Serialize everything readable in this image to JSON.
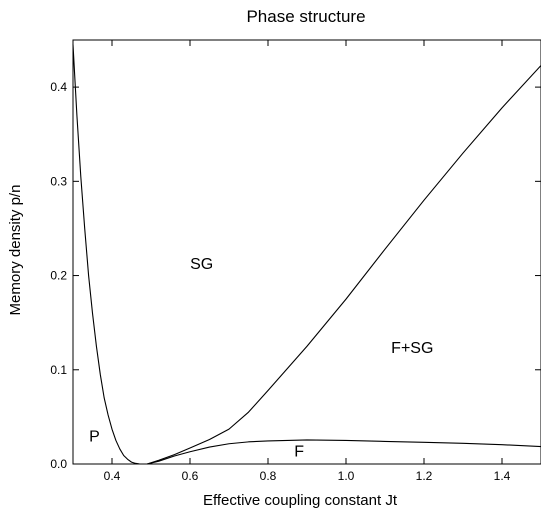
{
  "chart_data": {
    "type": "line",
    "title": "Phase structure",
    "xlabel": "Effective coupling constant Jt",
    "ylabel": "Memory density p/n",
    "xlim": [
      0.3,
      1.5
    ],
    "ylim": [
      0.0,
      0.45
    ],
    "x_ticks": [
      {
        "value": 0.4,
        "label": "0.4"
      },
      {
        "value": 0.6,
        "label": "0.6"
      },
      {
        "value": 0.8,
        "label": "0.8"
      },
      {
        "value": 1.0,
        "label": "1.0"
      },
      {
        "value": 1.2,
        "label": "1.2"
      },
      {
        "value": 1.4,
        "label": "1.4"
      }
    ],
    "y_ticks": [
      {
        "value": 0.0,
        "label": "0.0"
      },
      {
        "value": 0.1,
        "label": "0.1"
      },
      {
        "value": 0.2,
        "label": "0.2"
      },
      {
        "value": 0.3,
        "label": "0.3"
      },
      {
        "value": 0.4,
        "label": "0.4"
      }
    ],
    "grid": false,
    "series": [
      {
        "x": [
          0.3,
          0.31,
          0.32,
          0.33,
          0.34,
          0.35,
          0.36,
          0.37,
          0.38,
          0.39,
          0.4,
          0.41,
          0.42,
          0.43,
          0.44,
          0.45,
          0.46,
          0.47,
          0.48,
          0.49
        ],
        "y": [
          0.445,
          0.37,
          0.305,
          0.25,
          0.2,
          0.16,
          0.125,
          0.095,
          0.07,
          0.052,
          0.037,
          0.025,
          0.016,
          0.009,
          0.005,
          0.002,
          0.0007,
          0.0001,
          0.0,
          0.0
        ]
      },
      {
        "x": [
          0.49,
          0.52,
          0.56,
          0.6,
          0.65,
          0.7,
          0.75,
          0.8,
          0.9,
          1.0,
          1.1,
          1.2,
          1.3,
          1.4,
          1.5
        ],
        "y": [
          0.0,
          0.004,
          0.01,
          0.017,
          0.026,
          0.037,
          0.055,
          0.078,
          0.125,
          0.175,
          0.228,
          0.28,
          0.33,
          0.378,
          0.423
        ]
      },
      {
        "x": [
          0.49,
          0.52,
          0.56,
          0.6,
          0.65,
          0.7,
          0.75,
          0.8,
          0.9,
          1.0,
          1.1,
          1.2,
          1.3,
          1.4,
          1.5
        ],
        "y": [
          0.0,
          0.003,
          0.0085,
          0.013,
          0.018,
          0.0215,
          0.0235,
          0.0245,
          0.0255,
          0.025,
          0.024,
          0.023,
          0.022,
          0.0205,
          0.0185
        ]
      }
    ],
    "annotations": [
      {
        "text": "SG",
        "x": 0.63,
        "y": 0.207
      },
      {
        "text": "F+SG",
        "x": 1.17,
        "y": 0.118
      },
      {
        "text": "P",
        "x": 0.355,
        "y": 0.024
      },
      {
        "text": "F",
        "x": 0.88,
        "y": 0.008
      }
    ]
  }
}
